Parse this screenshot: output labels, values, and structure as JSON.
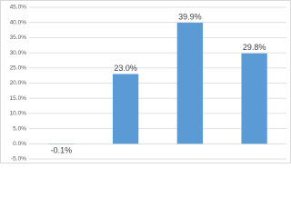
{
  "chart_data": {
    "type": "bar",
    "categories": [
      null,
      null,
      null,
      null
    ],
    "values": [
      -0.1,
      23.0,
      39.9,
      29.8
    ],
    "value_labels": [
      "-0.1%",
      "23.0%",
      "39.9%",
      "29.8%"
    ],
    "color": "#5b9bd5",
    "ylim": [
      -5,
      45
    ],
    "yticks": [
      {
        "value": -5,
        "label": "-5.0%"
      },
      {
        "value": 0,
        "label": "0.0%"
      },
      {
        "value": 5,
        "label": "5.0%"
      },
      {
        "value": 10,
        "label": "10.0%"
      },
      {
        "value": 15,
        "label": "15.0%"
      },
      {
        "value": 20,
        "label": "20.0%"
      },
      {
        "value": 25,
        "label": "25.0%"
      },
      {
        "value": 30,
        "label": "30.0%"
      },
      {
        "value": 35,
        "label": "35.0%"
      },
      {
        "value": 40,
        "label": "40.0%"
      },
      {
        "value": 45,
        "label": "45.0%"
      }
    ],
    "grid": true
  }
}
